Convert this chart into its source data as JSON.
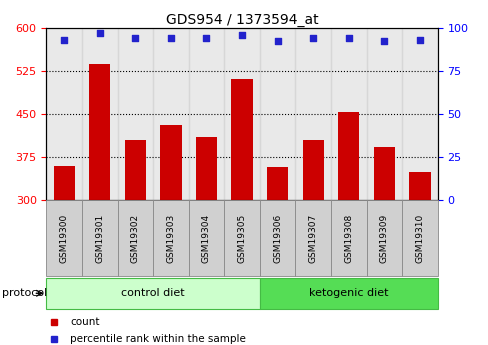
{
  "title": "GDS954 / 1373594_at",
  "samples": [
    "GSM19300",
    "GSM19301",
    "GSM19302",
    "GSM19303",
    "GSM19304",
    "GSM19305",
    "GSM19306",
    "GSM19307",
    "GSM19308",
    "GSM19309",
    "GSM19310"
  ],
  "counts": [
    360,
    537,
    405,
    430,
    410,
    510,
    358,
    405,
    453,
    392,
    348
  ],
  "percentile_ranks": [
    93,
    97,
    94,
    94,
    94,
    96,
    92,
    94,
    94,
    92,
    93
  ],
  "ylim_left": [
    300,
    600
  ],
  "ylim_right": [
    0,
    100
  ],
  "yticks_left": [
    300,
    375,
    450,
    525,
    600
  ],
  "yticks_right": [
    0,
    25,
    50,
    75,
    100
  ],
  "bar_color": "#cc0000",
  "dot_color": "#2222cc",
  "bar_width": 0.6,
  "groups": [
    {
      "label": "control diet",
      "start": 0,
      "end": 5,
      "color": "#ccffcc",
      "edge_color": "#44bb44"
    },
    {
      "label": "ketogenic diet",
      "start": 6,
      "end": 10,
      "color": "#55dd55",
      "edge_color": "#44bb44"
    }
  ],
  "group_label_prefix": "protocol",
  "sample_cell_color": "#d0d0d0",
  "legend_items": [
    {
      "label": "count",
      "color": "#cc0000"
    },
    {
      "label": "percentile rank within the sample",
      "color": "#2222cc"
    }
  ]
}
